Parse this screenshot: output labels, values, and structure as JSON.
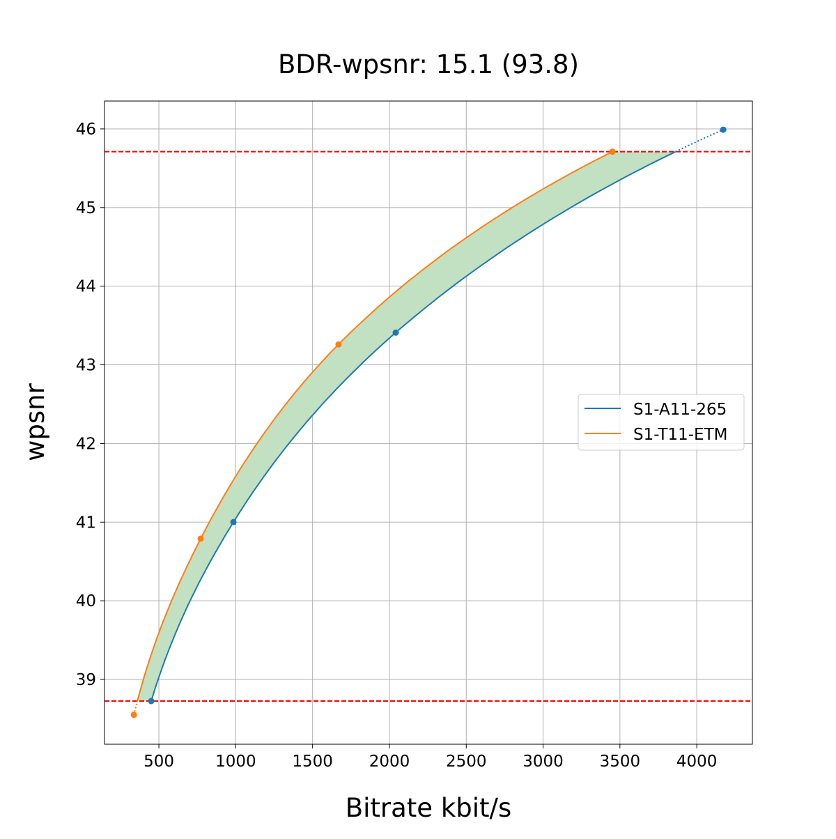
{
  "chart_data": {
    "type": "line",
    "title": "BDR-wpsnr: 15.1 (93.8)",
    "xlabel": "Bitrate kbit/s",
    "ylabel": "wpsnr",
    "xlim": [
      146,
      4362
    ],
    "ylim": [
      38.176,
      46.354
    ],
    "xticks": [
      500,
      1000,
      1500,
      2000,
      2500,
      3000,
      3500,
      4000
    ],
    "yticks": [
      39,
      40,
      41,
      42,
      43,
      44,
      45,
      46
    ],
    "grid": true,
    "legend_position": "center-right",
    "series": [
      {
        "name": "S1-A11-265",
        "color": "#1f77b4",
        "x": [
          450,
          985,
          2041,
          4172
        ],
        "y": [
          38.725,
          41.0,
          43.41,
          45.99
        ]
      },
      {
        "name": "S1-T11-ETM",
        "color": "#ff7f0e",
        "x": [
          337,
          772,
          1669,
          3451
        ],
        "y": [
          38.55,
          40.79,
          43.26,
          45.71
        ]
      }
    ],
    "reference_lines": {
      "y": [
        38.725,
        45.71
      ],
      "color": "#ff0000",
      "style": "dashed"
    },
    "fill_between": {
      "color": "#c2e0c2",
      "range_y": [
        38.725,
        45.71
      ]
    }
  }
}
